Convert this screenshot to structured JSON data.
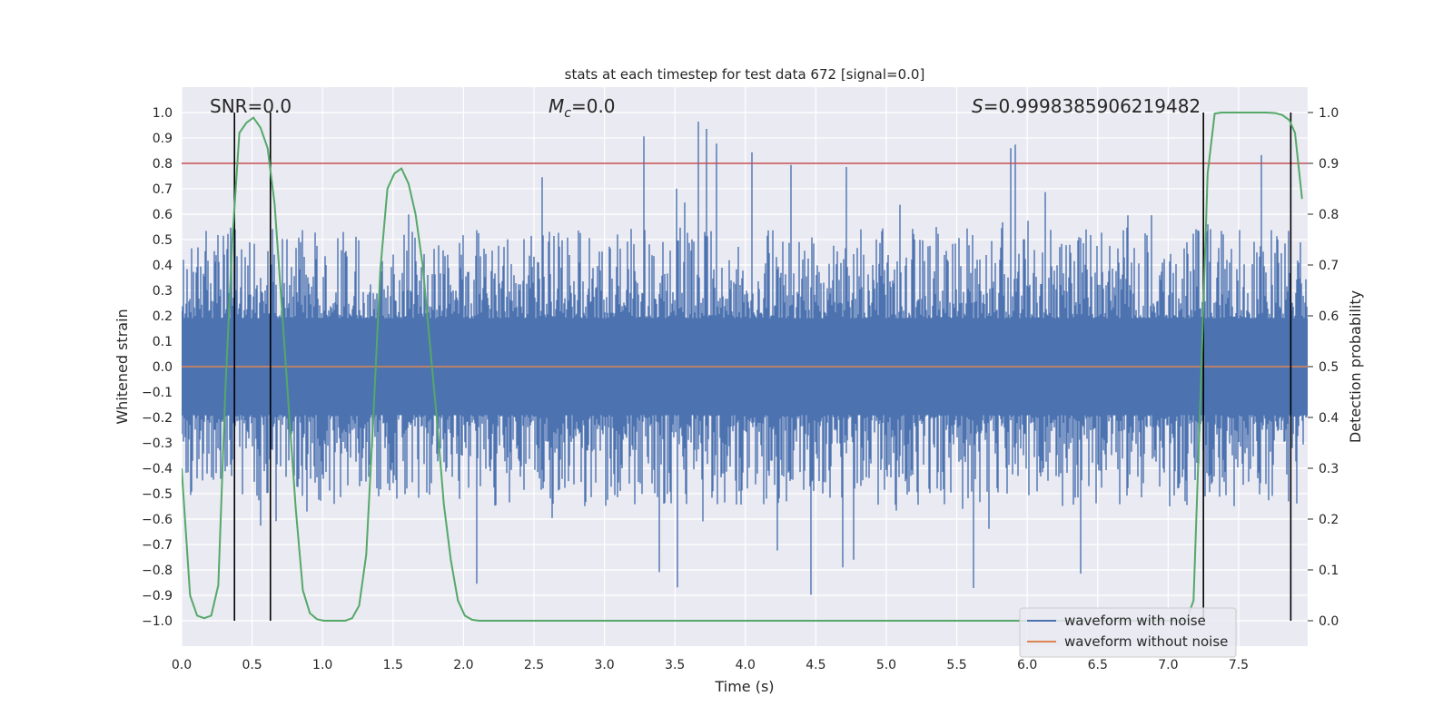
{
  "chart_data": {
    "type": "line",
    "title": "stats at each timestep for test data 672 [signal=0.0]",
    "xlabel": "Time (s)",
    "ylabel": "Whitened strain",
    "y2label": "Detection probability",
    "xlim": [
      0.0,
      7.99
    ],
    "ylim": [
      -1.1,
      1.1
    ],
    "y2lim": [
      -0.05,
      1.05
    ],
    "xticks": [
      "0.0",
      "0.5",
      "1.0",
      "1.5",
      "2.0",
      "2.5",
      "3.0",
      "3.5",
      "4.0",
      "4.5",
      "5.0",
      "5.5",
      "6.0",
      "6.5",
      "7.0",
      "7.5"
    ],
    "yticks": [
      "1.0",
      "0.9",
      "0.8",
      "0.7",
      "0.6",
      "0.5",
      "0.4",
      "0.3",
      "0.2",
      "0.1",
      "0.0",
      "−0.1",
      "−0.2",
      "−0.3",
      "−0.4",
      "−0.5",
      "−0.6",
      "−0.7",
      "−0.8",
      "−0.9",
      "−1.0"
    ],
    "y2ticks": [
      "1.0",
      "0.9",
      "0.8",
      "0.7",
      "0.6",
      "0.5",
      "0.4",
      "0.3",
      "0.2",
      "0.1",
      "0.0"
    ],
    "annotations": {
      "snr_label": "SNR=0.0",
      "mc_symbol": "M",
      "mc_sub": "c",
      "mc_value": "=0.0",
      "s_symbol": "S",
      "s_value": "=0.9998385906219482"
    },
    "legend": [
      "waveform with noise",
      "waveform without noise"
    ],
    "legend_position": "bottom-right",
    "threshold_probability": 0.9,
    "event_lines_time": [
      0.375,
      0.63,
      7.25,
      7.87
    ],
    "noise_envelope": {
      "core_amplitude": 0.19,
      "typical_peak": 0.55,
      "max_peak": 0.98,
      "min_peak": -0.98,
      "seed": 672
    },
    "series": [
      {
        "name": "waveform with noise",
        "color": "#4c72b0"
      },
      {
        "name": "waveform without noise",
        "color": "#dd8452",
        "x": [
          0.0,
          7.99
        ],
        "y": [
          0.0,
          0.0
        ]
      },
      {
        "name": "detection probability",
        "color": "#55a868",
        "axis": "right",
        "x": [
          0.0,
          0.06,
          0.11,
          0.16,
          0.21,
          0.26,
          0.31,
          0.36,
          0.41,
          0.46,
          0.51,
          0.56,
          0.61,
          0.66,
          0.71,
          0.76,
          0.81,
          0.86,
          0.91,
          0.96,
          1.01,
          1.06,
          1.11,
          1.16,
          1.21,
          1.26,
          1.31,
          1.36,
          1.41,
          1.46,
          1.51,
          1.56,
          1.61,
          1.66,
          1.71,
          1.76,
          1.81,
          1.86,
          1.91,
          1.96,
          2.01,
          2.06,
          2.11,
          2.2,
          3.0,
          4.0,
          5.0,
          6.0,
          6.5,
          7.0,
          7.13,
          7.18,
          7.23,
          7.28,
          7.33,
          7.38,
          7.5,
          7.6,
          7.7,
          7.76,
          7.81,
          7.86,
          7.9,
          7.95
        ],
        "y": [
          0.3,
          0.05,
          0.01,
          0.005,
          0.01,
          0.07,
          0.45,
          0.75,
          0.96,
          0.98,
          0.99,
          0.97,
          0.93,
          0.82,
          0.62,
          0.42,
          0.22,
          0.06,
          0.015,
          0.003,
          0.0,
          0.0,
          0.0,
          0.0,
          0.005,
          0.03,
          0.13,
          0.4,
          0.69,
          0.85,
          0.88,
          0.89,
          0.86,
          0.8,
          0.7,
          0.55,
          0.4,
          0.23,
          0.12,
          0.04,
          0.01,
          0.002,
          0.0,
          0.0,
          0.0,
          0.0,
          0.0,
          0.0,
          0.0,
          0.0,
          0.0,
          0.04,
          0.45,
          0.88,
          0.998,
          1.0,
          1.0,
          1.0,
          1.0,
          0.999,
          0.995,
          0.985,
          0.96,
          0.83
        ]
      }
    ]
  }
}
